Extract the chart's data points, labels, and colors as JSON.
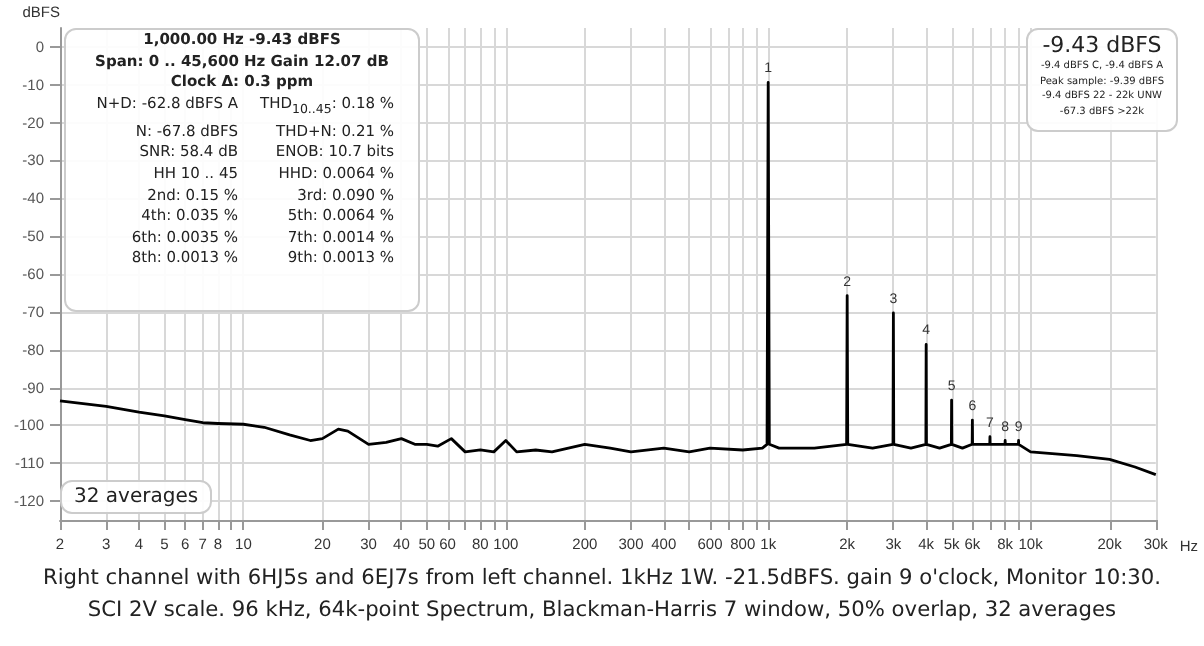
{
  "chart_data": {
    "type": "line",
    "ylabel": "dBFS",
    "log": "x",
    "grid": true,
    "marker": "none",
    "line_style": "solid",
    "xlim": [
      2,
      30000
    ],
    "ylim": [
      -125,
      5
    ],
    "xticks": [
      2,
      3,
      4,
      5,
      6,
      7,
      8,
      {
        "value": 9,
        "label": null
      },
      10,
      20,
      30,
      40,
      50,
      60,
      {
        "value": 70,
        "label": null
      },
      80,
      {
        "value": 90,
        "label": null
      },
      100,
      200,
      300,
      400,
      {
        "value": 500,
        "label": null
      },
      600,
      {
        "value": 700,
        "label": null
      },
      800,
      {
        "value": 900,
        "label": null
      },
      {
        "value": 1000,
        "label": "1k"
      },
      {
        "value": 2000,
        "label": "2k"
      },
      {
        "value": 3000,
        "label": "3k"
      },
      {
        "value": 4000,
        "label": "4k"
      },
      {
        "value": 5000,
        "label": "5k"
      },
      {
        "value": 6000,
        "label": "6k"
      },
      {
        "value": 7000,
        "label": null
      },
      {
        "value": 8000,
        "label": "8k"
      },
      {
        "value": 9000,
        "label": null
      },
      {
        "value": 10000,
        "label": "10k"
      },
      {
        "value": 20000,
        "label": "20k"
      },
      {
        "value": 30000,
        "label": "30k"
      }
    ],
    "xlabel": "Hz",
    "yticks": [
      0,
      -10,
      -20,
      -30,
      -40,
      -50,
      -60,
      -70,
      -80,
      -90,
      -100,
      -110,
      -120
    ],
    "series": [
      {
        "color": "#000000",
        "x": [
          2,
          3,
          4,
          5,
          6,
          7,
          8,
          10,
          12,
          15,
          18,
          20,
          23,
          25,
          30,
          35,
          40,
          45,
          50,
          55,
          62,
          70,
          80,
          90,
          100,
          110,
          130,
          150,
          200,
          250,
          300,
          400,
          500,
          600,
          800,
          950,
          990,
          1000,
          1010,
          1100,
          1500,
          1990,
          2000,
          2010,
          2500,
          2990,
          3000,
          3010,
          3500,
          3990,
          4000,
          4010,
          4500,
          4990,
          5000,
          5010,
          5500,
          5990,
          6000,
          6010,
          6990,
          7000,
          7010,
          7990,
          8000,
          8010,
          8990,
          9000,
          9010,
          10000,
          15000,
          20000,
          25000,
          30000
        ],
        "values": [
          -93.5,
          -95,
          -96.5,
          -97.5,
          -98.5,
          -99.3,
          -99.5,
          -99.7,
          -100.5,
          -102.5,
          -104,
          -103.5,
          -101,
          -101.5,
          -105,
          -104.5,
          -103.5,
          -105,
          -105,
          -105.5,
          -103.5,
          -107,
          -106.5,
          -107,
          -104,
          -107,
          -106.5,
          -107,
          -105,
          -106,
          -107,
          -106,
          -107,
          -106,
          -106.5,
          -106,
          -105,
          -9.4,
          -105,
          -106,
          -106,
          -105,
          -65.7,
          -105,
          -106,
          -105,
          -70.3,
          -105,
          -106,
          -105,
          -78.6,
          -105,
          -106,
          -105,
          -93.3,
          -105,
          -106,
          -105,
          -98.6,
          -105,
          -105,
          -103,
          -105,
          -105,
          -104,
          -105,
          -105,
          -104,
          -105,
          -107,
          -108,
          -109,
          -111,
          -113
        ]
      }
    ],
    "annotations": [
      "1,000.00 Hz  -9.43 dBFS",
      "Span: 0 .. 45,600 Hz   Gain 12.07 dB",
      "Clock Δ: 0.3 ppm",
      "N+D: -62.8 dBFS A",
      "THD$_{10..45}$: 0.18 %",
      "N: -67.8 dBFS",
      "THD+N: 0.21 %",
      "SNR: 58.4 dB",
      "ENOB: 10.7 bits",
      "HH 10 .. 45",
      "HHD: 0.0064 %",
      "2nd: 0.15 %",
      "3rd: 0.090 %",
      "4th: 0.035 %",
      "5th: 0.0064 %",
      "6th: 0.0035 %",
      "7th: 0.0014 %",
      "8th: 0.0013 %",
      "9th: 0.0013 %",
      "-9.43 dBFS",
      "-9.4 dBFS C, -9.4 dBFS A",
      "Peak sample: -9.39 dBFS",
      "-9.4 dBFS 22 - 22k UNW",
      "-67.3 dBFS >22k",
      "32 averages",
      "Right channel with 6HJ5s and 6EJ7s from left channel. 1kHz 1W. -21.5dBFS. gain 9 o'clock, Monitor 10:30.",
      "SCI 2V scale. 96 kHz, 64k-point Spectrum, Blackman-Harris 7 window, 50% overlap, 32 averages",
      {
        "text": "1",
        "x": 1000,
        "y": -9.4
      },
      {
        "text": "2",
        "x": 2000,
        "y": -65.7
      },
      {
        "text": "3",
        "x": 3000,
        "y": -70.3
      },
      {
        "text": "4",
        "x": 4000,
        "y": -78.6
      },
      {
        "text": "5",
        "x": 5000,
        "y": -93.3
      },
      {
        "text": "6",
        "x": 6000,
        "y": -98.6
      },
      {
        "text": "7",
        "x": 7000,
        "y": -103
      },
      {
        "text": "8",
        "x": 8000,
        "y": -104
      },
      {
        "text": "9",
        "x": 9000,
        "y": -104
      }
    ]
  }
}
